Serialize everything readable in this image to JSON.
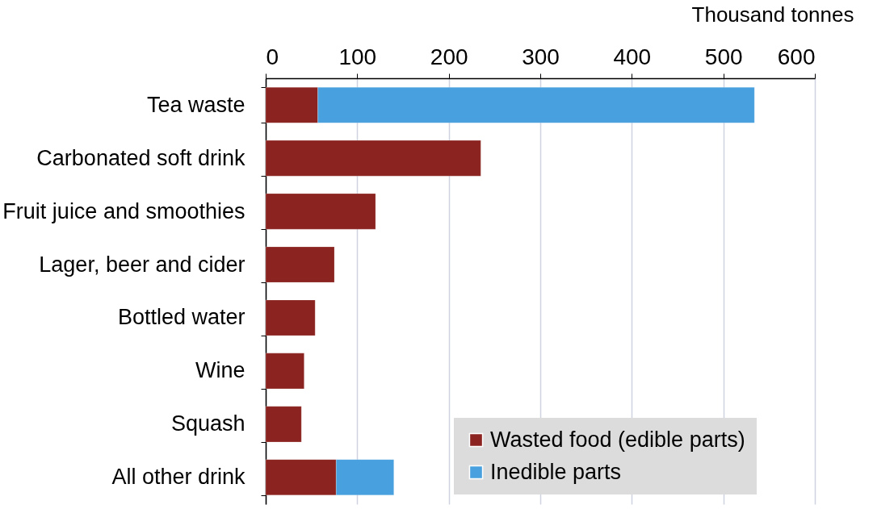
{
  "chart_data": {
    "type": "bar",
    "orientation": "horizontal",
    "stacked": true,
    "xlabel": "Thousand tonnes",
    "categories": [
      "Tea waste",
      "Carbonated soft drink",
      "Fruit juice and smoothies",
      "Lager, beer and cider",
      "Bottled water",
      "Wine",
      "Squash",
      "All other drink"
    ],
    "series": [
      {
        "name": "Wasted food (edible parts)",
        "color": "#8b2420",
        "values": [
          57,
          235,
          120,
          75,
          54,
          42,
          39,
          77
        ]
      },
      {
        "name": "Inedible parts",
        "color": "#48a0de",
        "values": [
          477,
          null,
          null,
          null,
          null,
          null,
          null,
          63
        ]
      }
    ],
    "xlim": [
      0,
      600
    ],
    "xticks": [
      0,
      100,
      200,
      300,
      400,
      500,
      600
    ],
    "grid": "x",
    "legend": "bottom right"
  }
}
